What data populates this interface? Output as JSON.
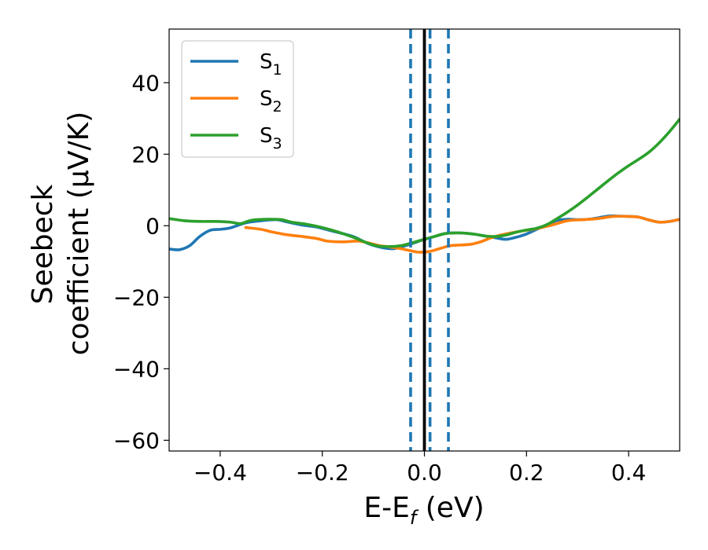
{
  "chart_data": {
    "type": "line",
    "xlabel": {
      "base": "E-E",
      "sub": "f",
      "rest": " (eV)"
    },
    "ylabel": {
      "line1": "Seebeck",
      "line2": "coefficient  (μV/K)"
    },
    "xlim": [
      -0.5,
      0.5
    ],
    "ylim": [
      -63,
      55
    ],
    "xticks": [
      -0.4,
      -0.2,
      0.0,
      0.2,
      0.4
    ],
    "xtick_labels": [
      "−0.4",
      "−0.2",
      "0.0",
      "0.2",
      "0.4"
    ],
    "yticks": [
      -60,
      -40,
      -20,
      0,
      20,
      40
    ],
    "ytick_labels": [
      "−60",
      "−40",
      "−20",
      "0",
      "20",
      "40"
    ],
    "grid": false,
    "legend_position": "top-left",
    "series": [
      {
        "name": "S1",
        "label_base": "S",
        "label_sub": "1",
        "color": "#1f77b4",
        "points": [
          [
            -0.5,
            -6.5
          ],
          [
            -0.48,
            -6.7
          ],
          [
            -0.46,
            -5.6
          ],
          [
            -0.44,
            -3
          ],
          [
            -0.42,
            -1.3
          ],
          [
            -0.4,
            -1
          ],
          [
            -0.38,
            -0.6
          ],
          [
            -0.35,
            0.8
          ],
          [
            -0.32,
            1.4
          ],
          [
            -0.29,
            1.7
          ],
          [
            -0.27,
            1.1
          ],
          [
            -0.24,
            0.2
          ],
          [
            -0.21,
            -0.4
          ],
          [
            -0.18,
            -1.5
          ],
          [
            -0.14,
            -3
          ],
          [
            -0.11,
            -5
          ],
          [
            -0.08,
            -6.2
          ],
          [
            -0.06,
            -6.4
          ],
          [
            -0.04,
            -5.7
          ],
          [
            -0.02,
            -4.8
          ],
          [
            0.0,
            -3.8
          ],
          [
            0.02,
            -3
          ],
          [
            0.04,
            -2.2
          ],
          [
            0.06,
            -2
          ],
          [
            0.08,
            -2.1
          ],
          [
            0.1,
            -2.4
          ],
          [
            0.12,
            -2.9
          ],
          [
            0.14,
            -3.4
          ],
          [
            0.16,
            -3.8
          ],
          [
            0.18,
            -3.2
          ],
          [
            0.2,
            -2.3
          ],
          [
            0.22,
            -1
          ],
          [
            0.24,
            0.3
          ],
          [
            0.26,
            1.5
          ],
          [
            0.28,
            1.8
          ],
          [
            0.3,
            1.7
          ],
          [
            0.32,
            1.8
          ],
          [
            0.34,
            2.2
          ],
          [
            0.36,
            2.7
          ],
          [
            0.38,
            2.7
          ],
          [
            0.4,
            2.6
          ],
          [
            0.42,
            2.4
          ],
          [
            0.44,
            1.6
          ],
          [
            0.46,
            1
          ],
          [
            0.48,
            1.2
          ],
          [
            0.5,
            1.8
          ]
        ]
      },
      {
        "name": "S2",
        "label_base": "S",
        "label_sub": "2",
        "color": "#ff7f0e",
        "points": [
          [
            -0.35,
            -0.5
          ],
          [
            -0.32,
            -1
          ],
          [
            -0.3,
            -1.7
          ],
          [
            -0.27,
            -2.5
          ],
          [
            -0.24,
            -3
          ],
          [
            -0.21,
            -3.6
          ],
          [
            -0.19,
            -4.3
          ],
          [
            -0.16,
            -4.5
          ],
          [
            -0.13,
            -4.3
          ],
          [
            -0.11,
            -4.8
          ],
          [
            -0.09,
            -5.5
          ],
          [
            -0.07,
            -5.9
          ],
          [
            -0.05,
            -6.3
          ],
          [
            -0.03,
            -6.9
          ],
          [
            -0.01,
            -7.4
          ],
          [
            0.01,
            -7.2
          ],
          [
            0.03,
            -6.4
          ],
          [
            0.05,
            -5.6
          ],
          [
            0.07,
            -5.4
          ],
          [
            0.09,
            -5.2
          ],
          [
            0.11,
            -4.5
          ],
          [
            0.13,
            -3.4
          ],
          [
            0.15,
            -2.6
          ],
          [
            0.17,
            -2
          ],
          [
            0.19,
            -1.5
          ],
          [
            0.22,
            -0.8
          ],
          [
            0.25,
            0.2
          ],
          [
            0.28,
            1.4
          ],
          [
            0.31,
            1.7
          ],
          [
            0.34,
            2
          ],
          [
            0.37,
            2.6
          ],
          [
            0.4,
            2.6
          ],
          [
            0.42,
            2.4
          ],
          [
            0.44,
            1.6
          ],
          [
            0.46,
            1
          ],
          [
            0.48,
            1.2
          ],
          [
            0.5,
            1.8
          ]
        ]
      },
      {
        "name": "S3",
        "label_base": "S",
        "label_sub": "3",
        "color": "#2ca02c",
        "points": [
          [
            -0.5,
            2
          ],
          [
            -0.47,
            1.4
          ],
          [
            -0.44,
            1.2
          ],
          [
            -0.41,
            1.2
          ],
          [
            -0.38,
            1
          ],
          [
            -0.36,
            0.6
          ],
          [
            -0.34,
            1.5
          ],
          [
            -0.31,
            1.8
          ],
          [
            -0.28,
            1.7
          ],
          [
            -0.26,
            1
          ],
          [
            -0.23,
            0.4
          ],
          [
            -0.2,
            -0.5
          ],
          [
            -0.17,
            -1.7
          ],
          [
            -0.14,
            -3.2
          ],
          [
            -0.11,
            -4.9
          ],
          [
            -0.09,
            -5.7
          ],
          [
            -0.06,
            -5.8
          ],
          [
            -0.04,
            -5.4
          ],
          [
            -0.02,
            -4.6
          ],
          [
            0.0,
            -3.8
          ],
          [
            0.02,
            -3
          ],
          [
            0.04,
            -2.2
          ],
          [
            0.06,
            -2
          ],
          [
            0.08,
            -2.1
          ],
          [
            0.1,
            -2.4
          ],
          [
            0.12,
            -2.9
          ],
          [
            0.14,
            -3
          ],
          [
            0.16,
            -2.6
          ],
          [
            0.18,
            -1.8
          ],
          [
            0.2,
            -1.2
          ],
          [
            0.22,
            -0.7
          ],
          [
            0.24,
            0.3
          ],
          [
            0.26,
            2
          ],
          [
            0.28,
            3.8
          ],
          [
            0.3,
            5.8
          ],
          [
            0.32,
            8
          ],
          [
            0.34,
            10.3
          ],
          [
            0.36,
            12.6
          ],
          [
            0.38,
            14.8
          ],
          [
            0.4,
            16.8
          ],
          [
            0.42,
            18.6
          ],
          [
            0.44,
            20.6
          ],
          [
            0.46,
            23.2
          ],
          [
            0.48,
            26.3
          ],
          [
            0.5,
            29.8
          ]
        ]
      }
    ],
    "vlines": [
      {
        "x": 0.0,
        "style": "solid",
        "color": "#000000"
      },
      {
        "x": -0.027,
        "style": "dashed",
        "color": "#1f77b4"
      },
      {
        "x": 0.011,
        "style": "dashed",
        "color": "#1f77b4"
      },
      {
        "x": 0.047,
        "style": "dashed",
        "color": "#1f77b4"
      }
    ]
  }
}
